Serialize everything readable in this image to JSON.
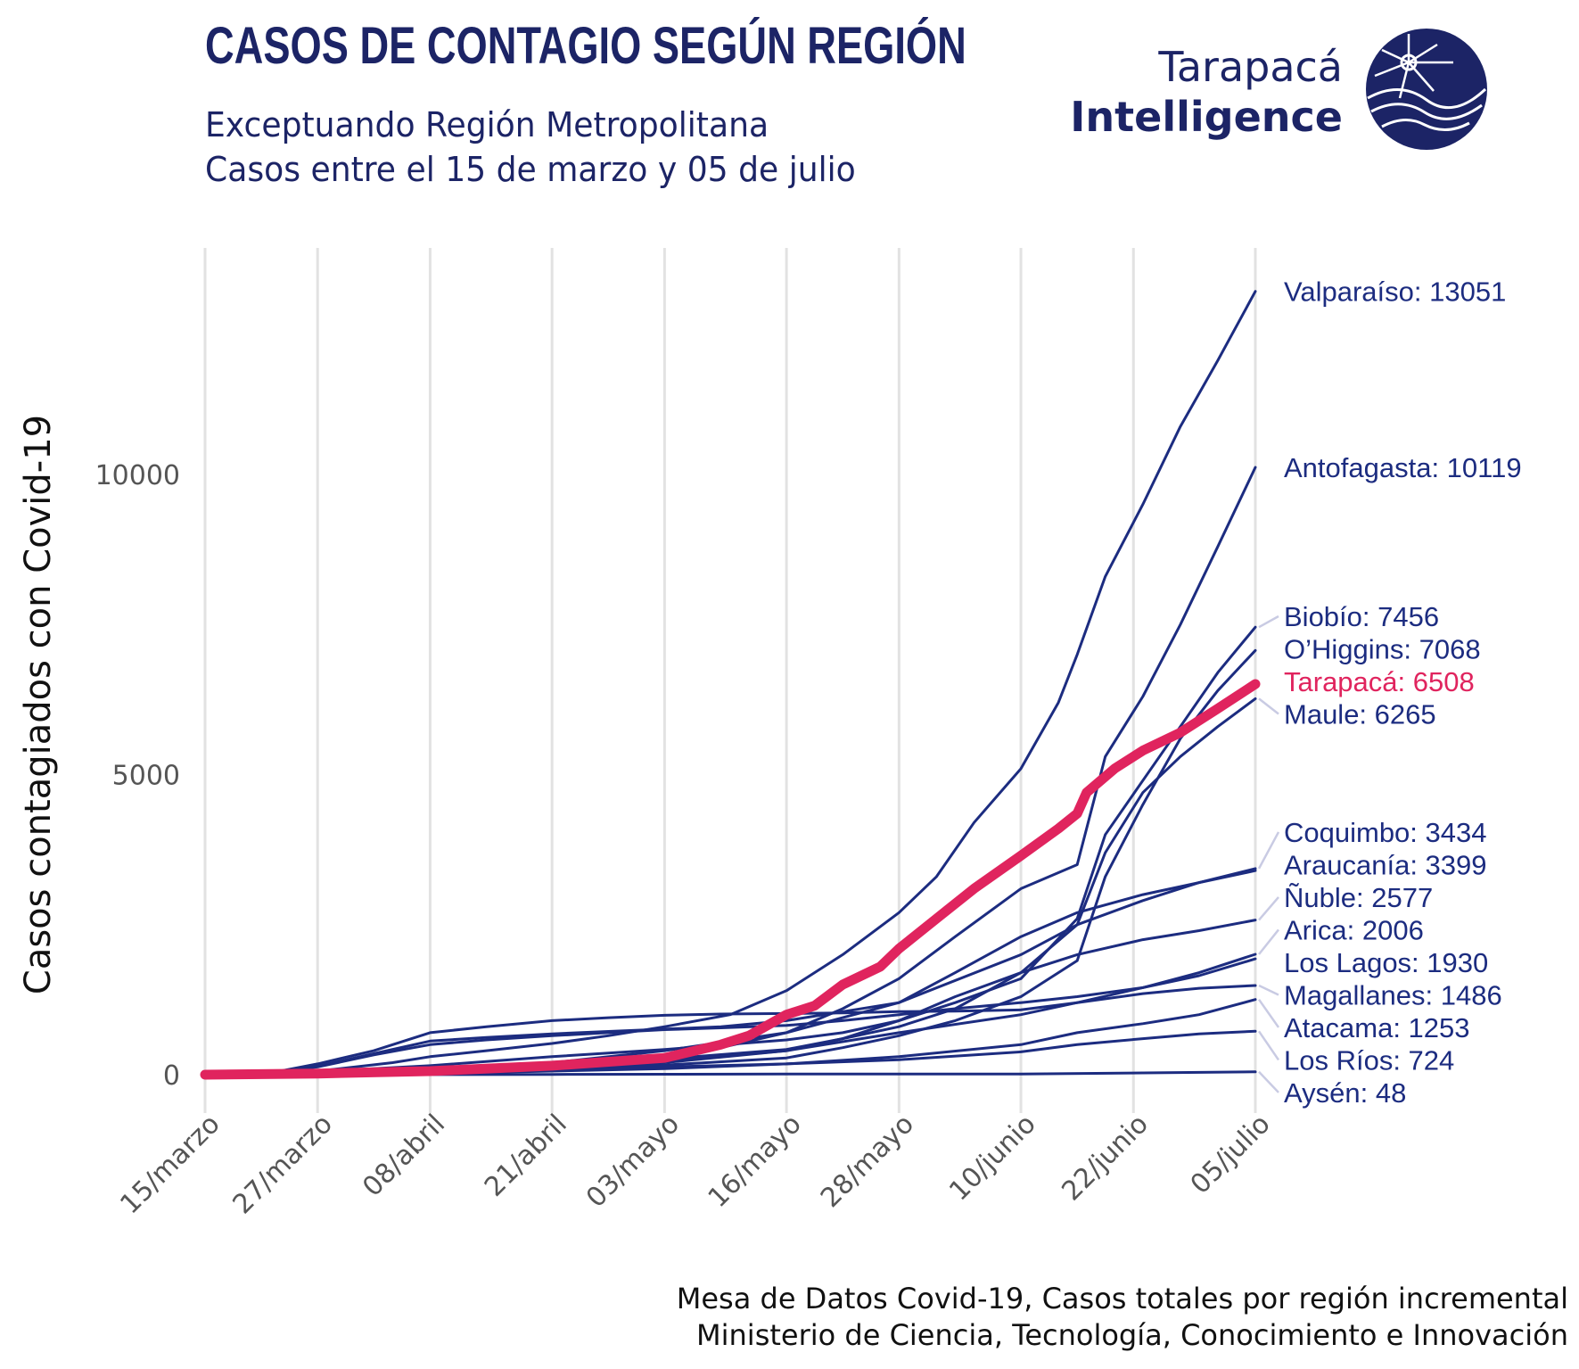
{
  "header": {
    "title": "CASOS DE CONTAGIO SEGÚN REGIÓN",
    "subtitle_1": "Exceptuando Región Metropolitana",
    "subtitle_2": "Casos entre el 15 de marzo y 05 de julio"
  },
  "logo": {
    "line_1": "Tarapacá",
    "line_2": "Intelligence",
    "icon": "sun-over-waves-icon"
  },
  "caption": {
    "line_1": "Mesa de Datos Covid-19, Casos totales por región incremental",
    "line_2": "Ministerio de Ciencia, Tecnología, Conocimiento e Innovación"
  },
  "colors": {
    "series": "#1c2c80",
    "highlight": "#e0245e",
    "grid": "#e2e2e2",
    "text": "#1c2466",
    "connector": "#c9cbe3"
  },
  "chart_data": {
    "type": "line",
    "ylabel": "Casos contagiados con Covid-19",
    "xlabel": "",
    "x_ticks": [
      "15/marzo",
      "27/marzo",
      "08/abril",
      "21/abril",
      "03/mayo",
      "16/mayo",
      "28/mayo",
      "10/junio",
      "22/junio",
      "05/julio"
    ],
    "x_tick_days": [
      0,
      12,
      24,
      37,
      49,
      62,
      74,
      87,
      99,
      112
    ],
    "x_range": [
      0,
      112
    ],
    "y_ticks": [
      0,
      5000,
      10000
    ],
    "ylim": [
      -600,
      13800
    ],
    "grid": "vertical",
    "legend": "end-labels-right",
    "highlight_series": "Tarapacá",
    "series": [
      {
        "name": "Valparaíso",
        "label": "Valparaíso: 13051",
        "final": 13051,
        "x": [
          0,
          8,
          12,
          20,
          24,
          30,
          37,
          43,
          49,
          56,
          62,
          68,
          74,
          78,
          82,
          87,
          91,
          93,
          96,
          100,
          104,
          108,
          112
        ],
        "values": [
          0,
          30,
          60,
          200,
          300,
          400,
          520,
          650,
          800,
          1000,
          1400,
          2000,
          2700,
          3300,
          4200,
          5100,
          6200,
          7000,
          8300,
          9500,
          10800,
          11900,
          13051
        ]
      },
      {
        "name": "Antofagasta",
        "label": "Antofagasta: 10119",
        "final": 10119,
        "x": [
          0,
          12,
          24,
          37,
          49,
          55,
          62,
          68,
          74,
          80,
          87,
          93,
          96,
          100,
          104,
          108,
          112
        ],
        "values": [
          0,
          20,
          80,
          180,
          300,
          450,
          700,
          1100,
          1600,
          2300,
          3100,
          3500,
          5300,
          6300,
          7500,
          8800,
          10119
        ]
      },
      {
        "name": "Biobío",
        "label": "Biobío: 7456",
        "final": 7456,
        "x": [
          0,
          12,
          24,
          37,
          49,
          62,
          68,
          74,
          80,
          87,
          93,
          96,
          100,
          104,
          108,
          112
        ],
        "values": [
          0,
          50,
          150,
          300,
          420,
          580,
          700,
          900,
          1200,
          1600,
          2600,
          4000,
          4900,
          5800,
          6700,
          7456
        ]
      },
      {
        "name": "O'Higgins",
        "label": "O’Higgins: 7068",
        "final": 7068,
        "x": [
          0,
          12,
          24,
          37,
          49,
          62,
          68,
          74,
          80,
          87,
          93,
          96,
          100,
          104,
          108,
          112
        ],
        "values": [
          0,
          10,
          40,
          90,
          160,
          280,
          450,
          650,
          900,
          1300,
          1900,
          3300,
          4500,
          5600,
          6400,
          7068
        ]
      },
      {
        "name": "Tarapacá",
        "label": "Tarapacá: 6508",
        "final": 6508,
        "x": [
          0,
          12,
          24,
          37,
          49,
          55,
          58,
          62,
          65,
          68,
          72,
          74,
          78,
          82,
          87,
          91,
          93,
          94,
          97,
          100,
          104,
          108,
          112
        ],
        "values": [
          0,
          20,
          60,
          150,
          280,
          500,
          650,
          1000,
          1150,
          1500,
          1800,
          2100,
          2600,
          3100,
          3650,
          4100,
          4350,
          4700,
          5100,
          5400,
          5700,
          6100,
          6508
        ]
      },
      {
        "name": "Maule",
        "label": "Maule: 6265",
        "final": 6265,
        "x": [
          0,
          12,
          24,
          37,
          49,
          62,
          68,
          74,
          80,
          87,
          93,
          96,
          100,
          104,
          108,
          112
        ],
        "values": [
          0,
          15,
          60,
          150,
          260,
          420,
          600,
          800,
          1100,
          1700,
          2500,
          3700,
          4700,
          5300,
          5800,
          6265
        ]
      },
      {
        "name": "Coquimbo",
        "label": "Coquimbo: 3434",
        "final": 3434,
        "x": [
          0,
          12,
          24,
          37,
          49,
          62,
          74,
          87,
          93,
          100,
          106,
          112
        ],
        "values": [
          0,
          15,
          70,
          200,
          400,
          700,
          1200,
          2000,
          2500,
          2900,
          3200,
          3434
        ]
      },
      {
        "name": "Araucanía",
        "label": "Araucanía: 3399",
        "final": 3399,
        "x": [
          0,
          8,
          12,
          18,
          24,
          30,
          37,
          43,
          49,
          55,
          62,
          68,
          74,
          80,
          87,
          93,
          100,
          106,
          112
        ],
        "values": [
          0,
          50,
          140,
          350,
          560,
          620,
          680,
          720,
          760,
          800,
          900,
          1050,
          1200,
          1700,
          2300,
          2700,
          3000,
          3200,
          3399
        ]
      },
      {
        "name": "Ñuble",
        "label": "Ñuble: 2577",
        "final": 2577,
        "x": [
          0,
          12,
          24,
          37,
          49,
          62,
          68,
          74,
          80,
          87,
          93,
          100,
          106,
          112
        ],
        "values": [
          0,
          10,
          40,
          100,
          200,
          400,
          600,
          900,
          1300,
          1700,
          2000,
          2250,
          2400,
          2577
        ]
      },
      {
        "name": "Arica",
        "label": "Arica: 2006",
        "final": 2006,
        "x": [
          0,
          12,
          24,
          37,
          49,
          62,
          74,
          87,
          93,
          100,
          106,
          112
        ],
        "values": [
          0,
          10,
          40,
          120,
          220,
          400,
          700,
          1000,
          1200,
          1450,
          1700,
          2006
        ]
      },
      {
        "name": "Los Lagos",
        "label": "Los Lagos: 1930",
        "final": 1930,
        "x": [
          0,
          8,
          12,
          18,
          24,
          30,
          37,
          43,
          49,
          55,
          62,
          68,
          74,
          80,
          87,
          93,
          100,
          106,
          112
        ],
        "values": [
          0,
          40,
          130,
          330,
          500,
          580,
          650,
          700,
          750,
          780,
          820,
          900,
          1000,
          1100,
          1200,
          1300,
          1450,
          1650,
          1930
        ]
      },
      {
        "name": "Magallanes",
        "label": "Magallanes: 1486",
        "final": 1486,
        "x": [
          0,
          8,
          12,
          18,
          24,
          30,
          37,
          43,
          49,
          55,
          62,
          68,
          74,
          80,
          87,
          93,
          100,
          106,
          112
        ],
        "values": [
          0,
          60,
          180,
          400,
          700,
          800,
          900,
          950,
          990,
          1010,
          1020,
          1030,
          1050,
          1060,
          1080,
          1200,
          1350,
          1440,
          1486
        ]
      },
      {
        "name": "Atacama",
        "label": "Atacama: 1253",
        "final": 1253,
        "x": [
          0,
          12,
          24,
          37,
          49,
          62,
          74,
          87,
          93,
          100,
          106,
          112
        ],
        "values": [
          0,
          5,
          20,
          60,
          100,
          180,
          300,
          500,
          700,
          850,
          1000,
          1253
        ]
      },
      {
        "name": "Los Ríos",
        "label": "Los Ríos: 724",
        "final": 724,
        "x": [
          0,
          12,
          24,
          37,
          49,
          62,
          74,
          87,
          93,
          100,
          106,
          112
        ],
        "values": [
          0,
          10,
          40,
          80,
          130,
          180,
          250,
          380,
          500,
          600,
          680,
          724
        ]
      },
      {
        "name": "Aysén",
        "label": "Aysén: 48",
        "final": 48,
        "x": [
          0,
          12,
          24,
          37,
          49,
          62,
          74,
          87,
          100,
          112
        ],
        "values": [
          0,
          1,
          2,
          5,
          8,
          10,
          11,
          12,
          30,
          48
        ]
      }
    ]
  }
}
